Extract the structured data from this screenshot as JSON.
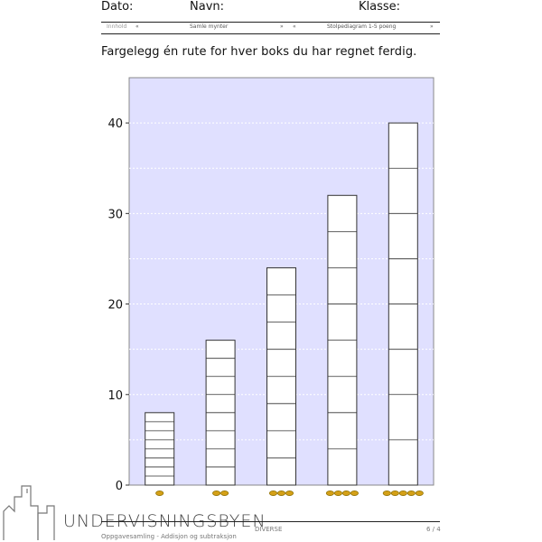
{
  "header": {
    "dato_label": "Dato:",
    "navn_label": "Navn:",
    "klasse_label": "Klasse:"
  },
  "nav": {
    "innhold": "Innhold",
    "prev_left": "«",
    "center_title": "Samle mynter",
    "next_center": "»",
    "prev_right": "«",
    "right_title": "Stolpediagram 1-5 poeng",
    "next_right": "»"
  },
  "instruction": "Fargelegg én rute for hver boks du har regnet ferdig.",
  "chart_data": {
    "type": "bar",
    "title": "",
    "xlabel": "",
    "ylabel": "",
    "ylim": [
      0,
      45
    ],
    "yticks": [
      0,
      10,
      20,
      30,
      40
    ],
    "grid": "horizontal dotted every 5",
    "categories": [
      "1 coin",
      "2 coins",
      "3 coins",
      "4 coins",
      "5 coins"
    ],
    "values": [
      8,
      16,
      24,
      32,
      40
    ],
    "box_size": [
      1,
      2,
      3,
      4,
      5
    ],
    "coins": [
      1,
      2,
      3,
      4,
      5
    ],
    "colors": {
      "plot_bg": "#e0e0ff",
      "bar_fill": "#ffffff",
      "coin": "#d4a017"
    }
  },
  "footer": {
    "logo": "UNDERVISNINGSBYEN",
    "subtitle": "Oppgavesamling - Addisjon og subtraksjon",
    "category": "DIVERSE",
    "page": "6 / 4"
  }
}
